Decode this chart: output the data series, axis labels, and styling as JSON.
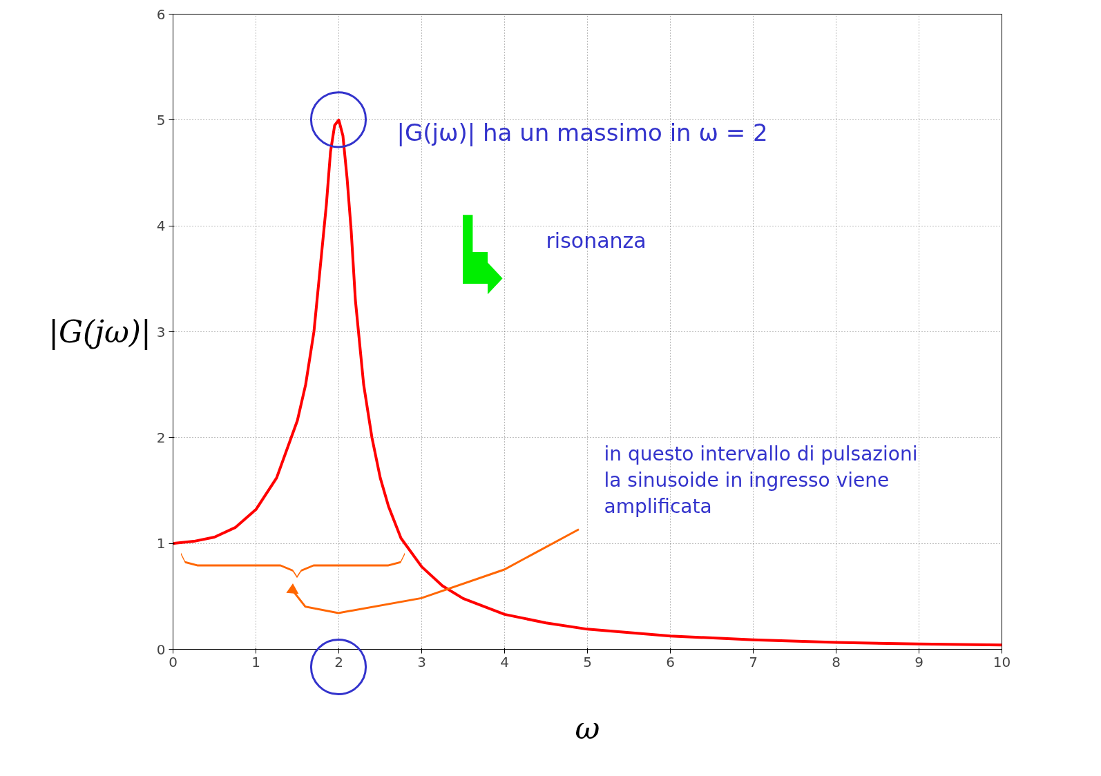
{
  "chart_data": {
    "type": "line",
    "xlabel": "ω",
    "ylabel": "|G(jω)|",
    "x": [
      0,
      0.25,
      0.5,
      0.75,
      1,
      1.25,
      1.5,
      1.6,
      1.7,
      1.8,
      1.85,
      1.9,
      1.95,
      2,
      2.05,
      2.1,
      2.15,
      2.2,
      2.3,
      2.4,
      2.5,
      2.6,
      2.75,
      3,
      3.25,
      3.5,
      4,
      4.5,
      5,
      6,
      7,
      8,
      9,
      10
    ],
    "series": [
      {
        "color": "#ff0000",
        "values": [
          1.0,
          1.02,
          1.06,
          1.15,
          1.32,
          1.62,
          2.16,
          2.5,
          3.0,
          3.8,
          4.2,
          4.7,
          4.95,
          5.0,
          4.85,
          4.45,
          3.95,
          3.3,
          2.5,
          2.0,
          1.62,
          1.35,
          1.05,
          0.78,
          0.6,
          0.48,
          0.33,
          0.25,
          0.19,
          0.125,
          0.09,
          0.065,
          0.05,
          0.04
        ]
      }
    ],
    "xlim": [
      0,
      10
    ],
    "ylim": [
      0,
      6
    ],
    "xticks": [
      0,
      1,
      2,
      3,
      4,
      5,
      6,
      7,
      8,
      9,
      10
    ],
    "yticks": [
      0,
      1,
      2,
      3,
      4,
      5,
      6
    ],
    "grid": true,
    "marker": "none",
    "line_style": "solid",
    "annotations": [
      "|G(jω)|   ha un massimo in  ω = 2",
      "risonanza",
      "in questo intervallo di pulsazioni\nla sinusoide in ingresso viene\namplificata"
    ]
  }
}
